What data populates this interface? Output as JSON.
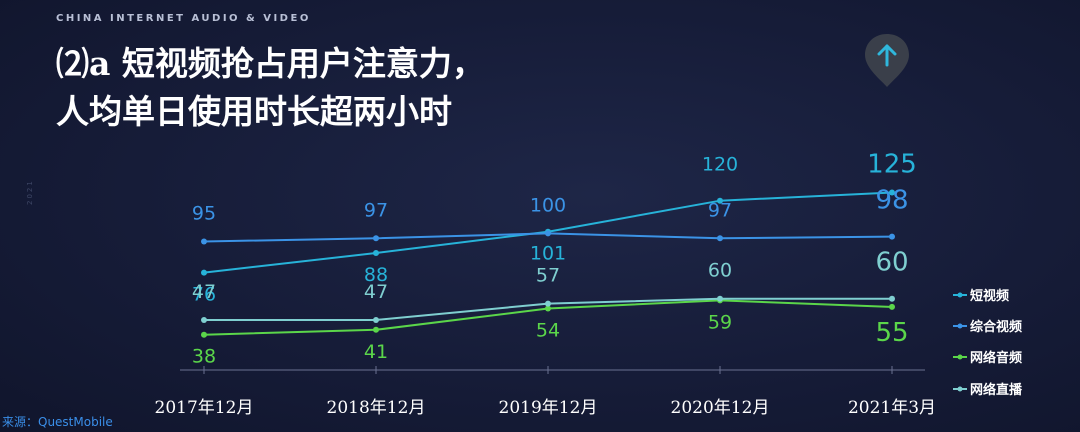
{
  "header_tag": "CHINA INTERNET AUDIO & VIDEO",
  "side_year": "2021",
  "title_line1": "⑵a 短视频抢占用户注意力，",
  "title_line2": "人均单日使用时长超两小时",
  "source": "来源：QuestMobile",
  "badge_icon": "up-arrow-icon",
  "colors": {
    "short_video": "#27b3d9",
    "variety_video": "#3b93e6",
    "online_audio": "#5bd64a",
    "live_stream": "#7fcfd0",
    "axis": "#6a7191",
    "tick_text": "#ffffff"
  },
  "chart_data": {
    "type": "line",
    "categories": [
      "2017年12月",
      "2018年12月",
      "2019年12月",
      "2020年12月",
      "2021年3月"
    ],
    "series": [
      {
        "name": "短视频",
        "values": [
          76,
          88,
          101,
          120,
          125
        ]
      },
      {
        "name": "综合视频",
        "values": [
          95,
          97,
          100,
          97,
          98
        ]
      },
      {
        "name": "网络音频",
        "values": [
          38,
          41,
          54,
          59,
          55
        ]
      },
      {
        "name": "网络直播",
        "values": [
          47,
          47,
          57,
          60,
          60
        ]
      }
    ],
    "legend_position": "right",
    "grid": false
  }
}
